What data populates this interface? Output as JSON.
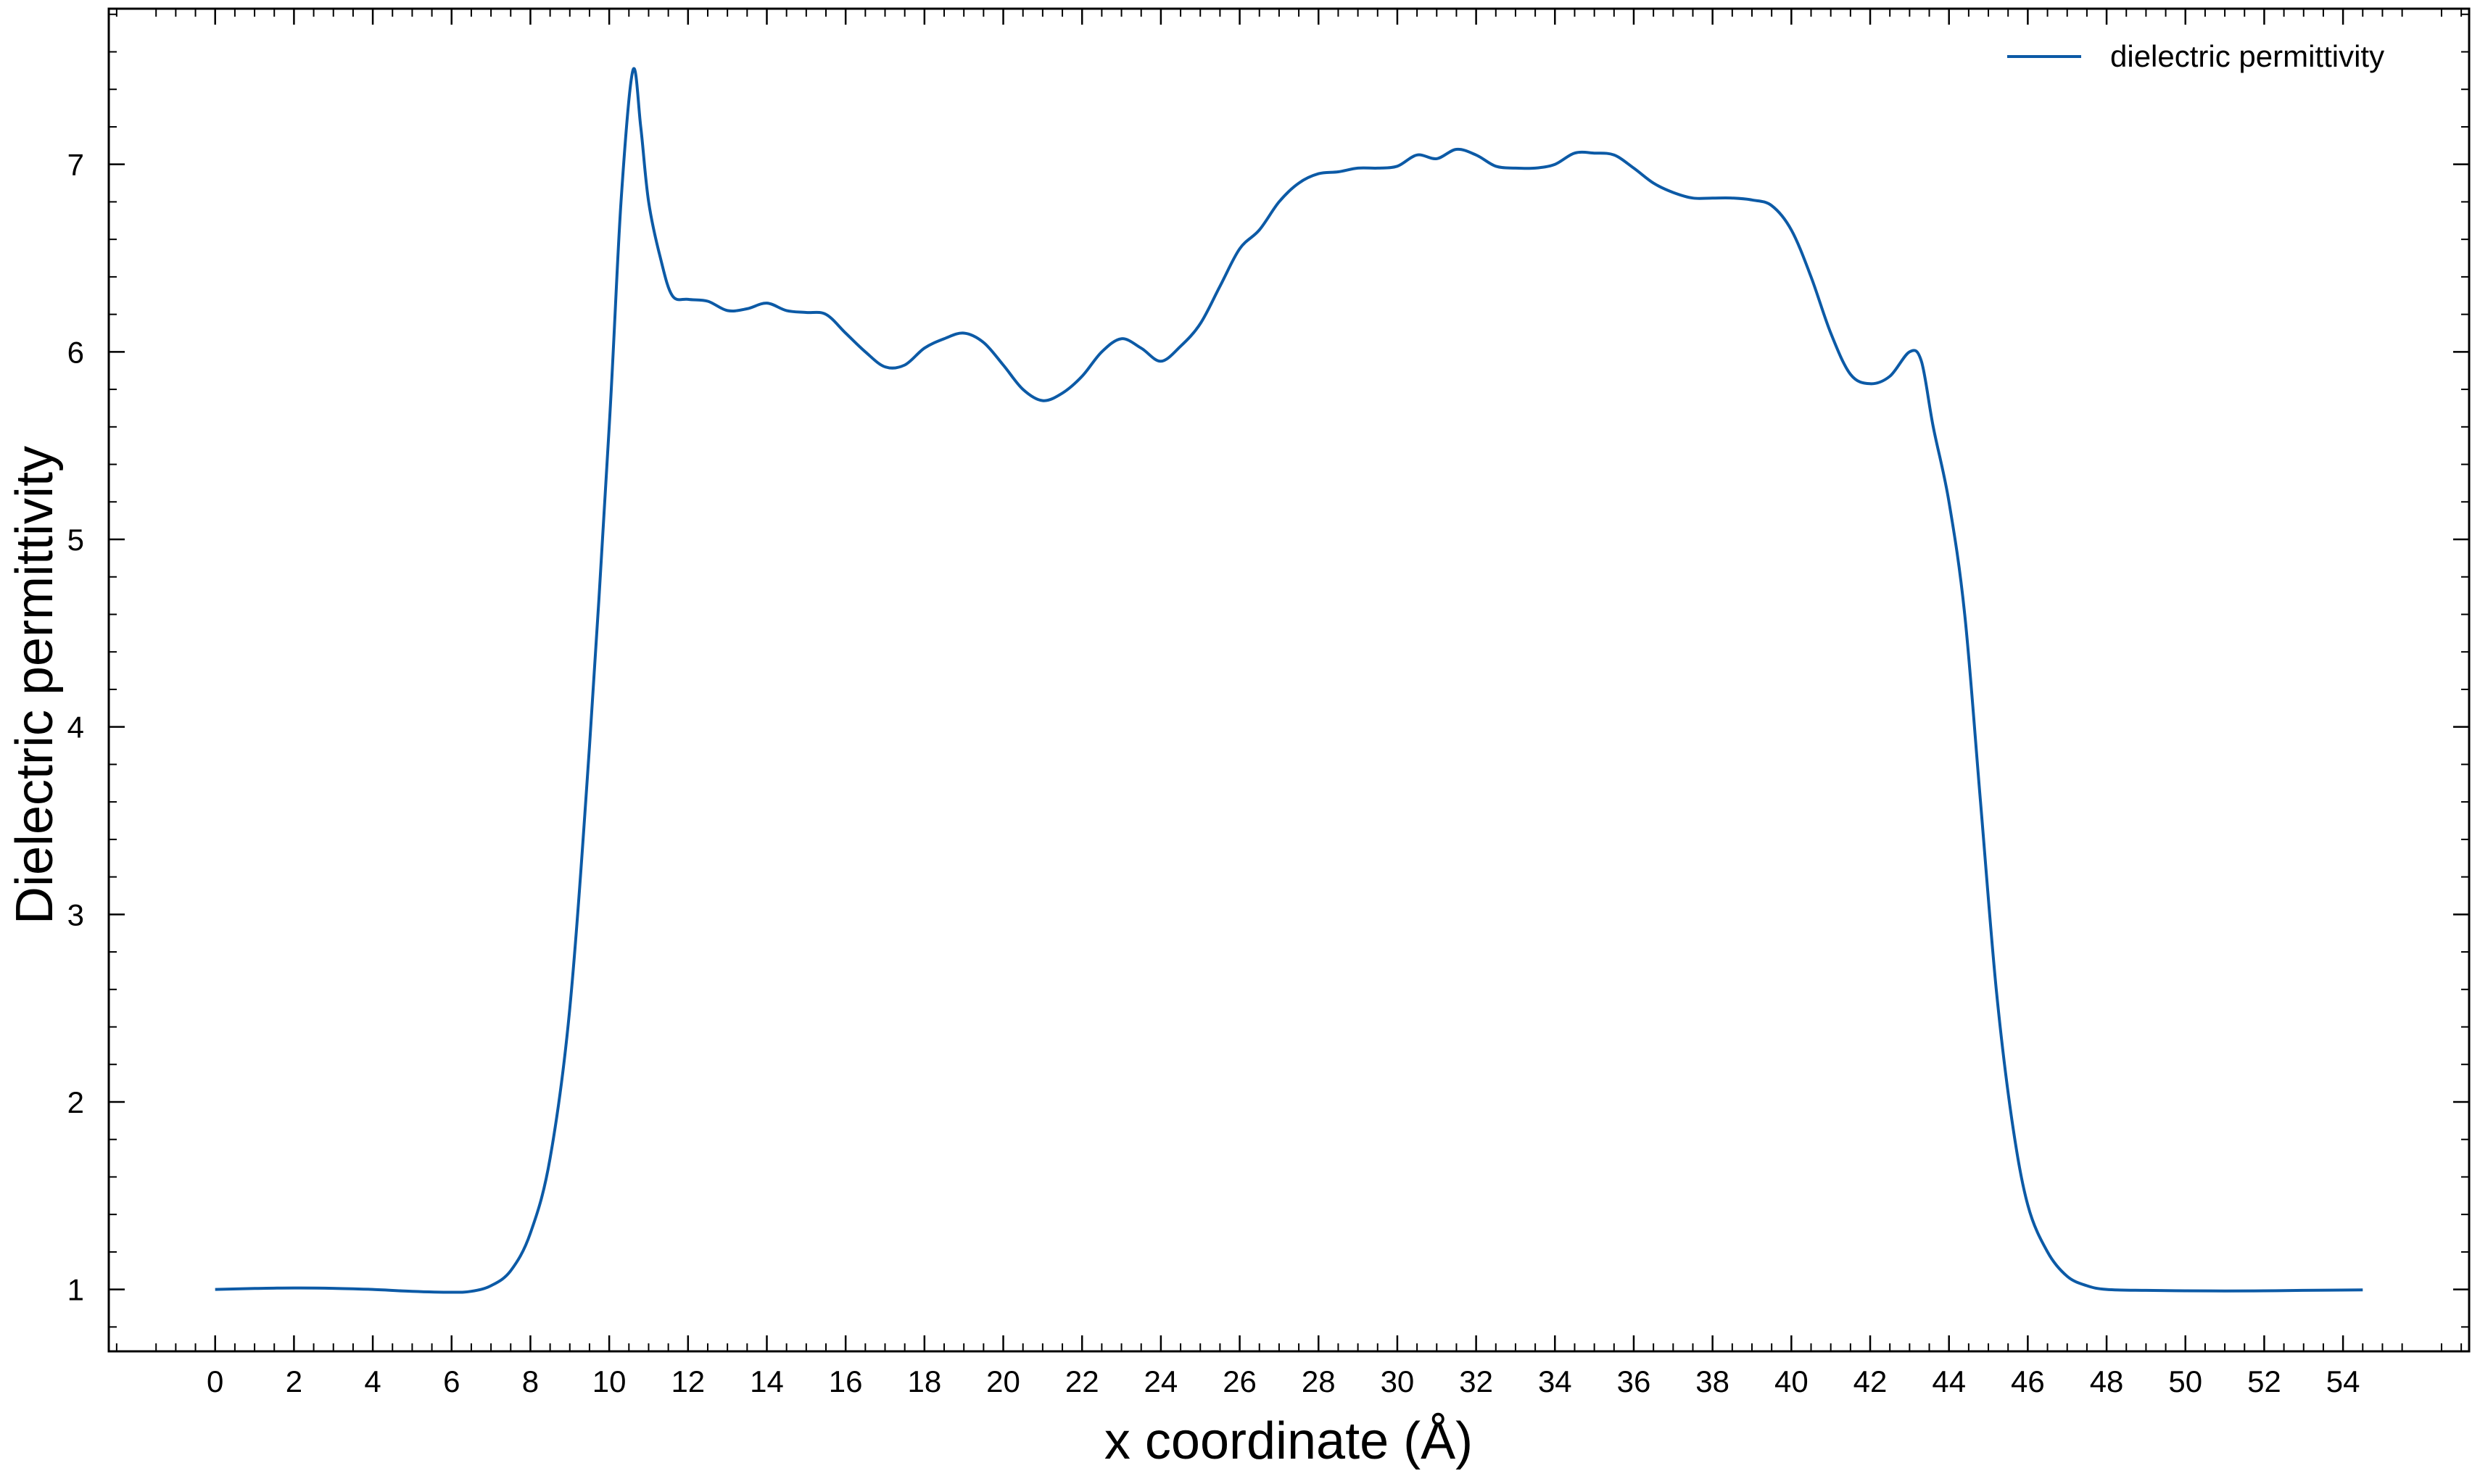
{
  "chart_data": {
    "type": "line",
    "title": "",
    "xlabel": "x coordinate (Å)",
    "ylabel": "Dielectric permittivity",
    "xlim": [
      -2.7,
      57.2
    ],
    "ylim": [
      0.67,
      7.83
    ],
    "x_ticks": [
      0,
      2,
      4,
      6,
      8,
      10,
      12,
      14,
      16,
      18,
      20,
      22,
      24,
      26,
      28,
      30,
      32,
      34,
      36,
      38,
      40,
      42,
      44,
      46,
      48,
      50,
      52,
      54
    ],
    "y_ticks": [
      1,
      2,
      3,
      4,
      5,
      6,
      7
    ],
    "grid": false,
    "legend_position": "top-right",
    "series": [
      {
        "name": "dielectric permittivity",
        "color": "#0c5aa6",
        "x": [
          0,
          1,
          2,
          3,
          4,
          5,
          6,
          6.5,
          7,
          7.5,
          8,
          8.5,
          9,
          9.5,
          10,
          10.3,
          10.6,
          10.8,
          11,
          11.3,
          11.6,
          12,
          12.5,
          13,
          13.5,
          14,
          14.5,
          15,
          15.5,
          16,
          16.5,
          17,
          17.5,
          18,
          18.5,
          19,
          19.5,
          20,
          20.5,
          21,
          21.5,
          22,
          22.5,
          23,
          23.5,
          24,
          24.5,
          25,
          25.5,
          26,
          26.5,
          27,
          27.5,
          28,
          28.5,
          29,
          29.5,
          30,
          30.5,
          31,
          31.5,
          32,
          32.5,
          33,
          33.5,
          34,
          34.5,
          35,
          35.5,
          36,
          36.5,
          37,
          37.5,
          38,
          38.5,
          39,
          39.5,
          40,
          40.5,
          41,
          41.5,
          42,
          42.5,
          43,
          43.3,
          43.6,
          44,
          44.4,
          44.8,
          45.2,
          45.6,
          46,
          46.5,
          47,
          47.5,
          48,
          49,
          50,
          51,
          52,
          53,
          54.5
        ],
        "y": [
          1.0,
          1.005,
          1.008,
          1.006,
          1.0,
          0.99,
          0.985,
          0.99,
          1.02,
          1.1,
          1.3,
          1.7,
          2.5,
          3.9,
          5.6,
          6.8,
          7.5,
          7.2,
          6.8,
          6.5,
          6.3,
          6.28,
          6.27,
          6.22,
          6.23,
          6.26,
          6.22,
          6.21,
          6.2,
          6.1,
          6.0,
          5.92,
          5.93,
          6.02,
          6.07,
          6.1,
          6.05,
          5.93,
          5.8,
          5.74,
          5.78,
          5.87,
          6.0,
          6.07,
          6.02,
          5.95,
          6.03,
          6.15,
          6.35,
          6.55,
          6.65,
          6.8,
          6.9,
          6.95,
          6.96,
          6.98,
          6.98,
          6.99,
          7.05,
          7.03,
          7.08,
          7.05,
          6.99,
          6.98,
          6.98,
          7.0,
          7.06,
          7.06,
          7.05,
          6.98,
          6.9,
          6.85,
          6.82,
          6.82,
          6.82,
          6.81,
          6.78,
          6.65,
          6.4,
          6.1,
          5.88,
          5.83,
          5.87,
          6.0,
          5.95,
          5.6,
          5.2,
          4.6,
          3.6,
          2.6,
          1.9,
          1.45,
          1.2,
          1.07,
          1.02,
          1.0,
          0.995,
          0.993,
          0.992,
          0.993,
          0.995,
          0.998
        ]
      }
    ]
  }
}
